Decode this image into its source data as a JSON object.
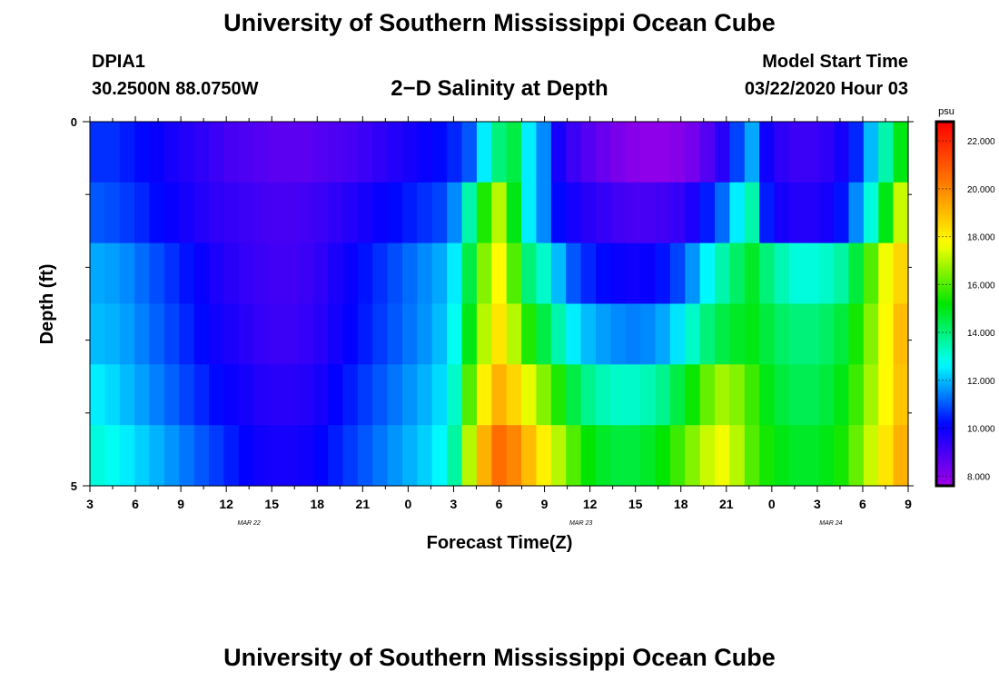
{
  "header": {
    "title": "University of Southern Mississippi Ocean Cube",
    "station_id": "DPIA1",
    "station_coords": "30.2500N 88.0750W",
    "subtitle": "2−D Salinity at Depth",
    "model_start_label": "Model Start Time",
    "model_start_time": "03/22/2020 Hour 03"
  },
  "footer": {
    "title": "University of Southern Mississippi Ocean Cube"
  },
  "chart_data": {
    "type": "heatmap",
    "xlabel": "Forecast Time(Z)",
    "ylabel": "Depth (ft)",
    "ylim": [
      0,
      5
    ],
    "y_tick_labels": [
      {
        "depth": 0,
        "label": "0"
      },
      {
        "depth": 5,
        "label": "5"
      }
    ],
    "y_minor_ticks": [
      1,
      2,
      3,
      4
    ],
    "x_tick_labels": [
      "3",
      "6",
      "9",
      "12",
      "15",
      "18",
      "21",
      "0",
      "3",
      "6",
      "9",
      "12",
      "15",
      "18",
      "21",
      "0",
      "3",
      "6",
      "9"
    ],
    "x_minor_ticks": [
      "4.5",
      "7.5",
      "10.5",
      "13.5",
      "16.5",
      "19.5",
      "22.5",
      "1.5",
      "4.5",
      "7.5",
      "10.5",
      "13.5",
      "16.5",
      "19.5",
      "22.5",
      "1.5",
      "4.5",
      "7.5"
    ],
    "date_labels": [
      {
        "label": "MAR 22",
        "tick_index": 3.5
      },
      {
        "label": "MAR 23",
        "tick_index": 10.8
      },
      {
        "label": "MAR 24",
        "tick_index": 16.3
      }
    ],
    "time_start": "03/22/2020 03Z",
    "time_step_hours": 1,
    "time_count": 55,
    "depth_layers_ft": [
      0,
      1,
      2,
      3,
      4,
      5
    ],
    "values": [
      [
        10.6,
        10.6,
        10.4,
        10.2,
        10.0,
        9.8,
        9.6,
        9.4,
        9.2,
        9.0,
        8.9,
        8.8,
        8.7,
        8.7,
        8.7,
        8.8,
        8.9,
        9.0,
        9.2,
        9.4,
        9.6,
        9.8,
        10.0,
        10.2,
        10.5,
        11.0,
        12.5,
        14.0,
        14.5,
        12.5,
        11.5,
        9.8,
        9.2,
        8.8,
        8.5,
        8.2,
        8.0,
        7.9,
        7.9,
        8.0,
        8.3,
        8.8,
        9.5,
        10.8,
        11.8,
        9.9,
        9.4,
        9.2,
        9.2,
        9.4,
        9.8,
        10.5,
        12.0,
        13.5,
        15.0
      ],
      [
        11.0,
        10.9,
        10.7,
        10.5,
        10.2,
        10.0,
        9.8,
        9.6,
        9.4,
        9.3,
        9.2,
        9.1,
        9.0,
        9.0,
        9.1,
        9.2,
        9.4,
        9.6,
        9.8,
        10.0,
        10.2,
        10.4,
        10.6,
        10.8,
        11.5,
        13.5,
        15.5,
        17.0,
        15.0,
        12.5,
        11.5,
        10.2,
        9.8,
        9.5,
        9.3,
        9.1,
        9.0,
        9.0,
        9.1,
        9.3,
        9.7,
        10.4,
        11.2,
        12.5,
        13.5,
        10.4,
        9.8,
        9.6,
        9.6,
        9.8,
        10.3,
        11.5,
        13.0,
        15.0,
        17.2
      ],
      [
        11.8,
        11.7,
        11.5,
        11.2,
        10.9,
        10.6,
        10.3,
        10.0,
        9.7,
        9.5,
        9.3,
        9.2,
        9.1,
        9.1,
        9.2,
        9.4,
        9.7,
        10.0,
        10.3,
        10.6,
        10.9,
        11.2,
        11.5,
        11.8,
        12.5,
        14.5,
        16.5,
        17.8,
        16.0,
        14.0,
        13.2,
        12.0,
        11.0,
        10.5,
        10.2,
        10.0,
        9.9,
        10.0,
        10.3,
        10.8,
        11.6,
        12.6,
        13.5,
        14.2,
        14.8,
        14.0,
        13.4,
        13.0,
        13.0,
        13.2,
        13.6,
        14.6,
        16.0,
        17.6,
        18.5
      ],
      [
        12.0,
        11.9,
        11.7,
        11.4,
        11.1,
        10.8,
        10.5,
        10.2,
        9.9,
        9.7,
        9.5,
        9.3,
        9.2,
        9.2,
        9.3,
        9.5,
        9.8,
        10.1,
        10.4,
        10.7,
        11.0,
        11.3,
        11.6,
        12.0,
        12.8,
        15.0,
        17.0,
        18.2,
        17.0,
        15.5,
        14.5,
        13.5,
        12.5,
        12.0,
        11.7,
        11.5,
        11.4,
        11.5,
        11.8,
        12.4,
        13.2,
        14.0,
        14.5,
        14.8,
        15.0,
        14.6,
        14.2,
        14.0,
        14.0,
        14.2,
        14.6,
        15.4,
        16.5,
        17.8,
        19.0
      ],
      [
        12.5,
        12.3,
        12.0,
        11.7,
        11.4,
        11.1,
        10.8,
        10.5,
        10.2,
        10.0,
        9.8,
        9.6,
        9.5,
        9.5,
        9.6,
        9.8,
        10.1,
        10.4,
        10.7,
        11.0,
        11.3,
        11.6,
        11.9,
        12.3,
        13.2,
        16.0,
        18.0,
        19.2,
        18.5,
        17.5,
        16.5,
        15.5,
        14.5,
        13.8,
        13.4,
        13.2,
        13.2,
        13.4,
        13.8,
        14.5,
        15.3,
        16.2,
        16.8,
        16.5,
        15.8,
        15.0,
        14.6,
        14.4,
        14.4,
        14.6,
        15.0,
        15.8,
        16.8,
        17.8,
        18.8
      ],
      [
        13.0,
        12.8,
        12.5,
        12.2,
        11.9,
        11.6,
        11.3,
        11.0,
        10.7,
        10.4,
        10.1,
        9.9,
        9.8,
        9.8,
        9.9,
        10.1,
        10.4,
        10.7,
        11.0,
        11.3,
        11.6,
        11.9,
        12.2,
        12.6,
        13.6,
        17.0,
        19.2,
        20.5,
        20.0,
        19.0,
        18.0,
        17.0,
        16.0,
        15.2,
        14.8,
        14.6,
        14.6,
        14.8,
        15.2,
        15.8,
        16.5,
        17.2,
        17.6,
        17.0,
        16.0,
        15.4,
        15.0,
        14.8,
        14.8,
        15.0,
        15.4,
        16.2,
        17.2,
        18.2,
        19.2
      ]
    ],
    "colorbar": {
      "unit": "psu",
      "range": [
        7.6,
        22.8
      ],
      "ticks": [
        "8.000",
        "10.000",
        "12.000",
        "14.000",
        "16.000",
        "18.000",
        "20.000",
        "22.000"
      ],
      "palette": [
        "#a000e6",
        "#0000ff",
        "#00ffff",
        "#00e600",
        "#ffff00",
        "#ff7800",
        "#ff0000"
      ]
    }
  }
}
